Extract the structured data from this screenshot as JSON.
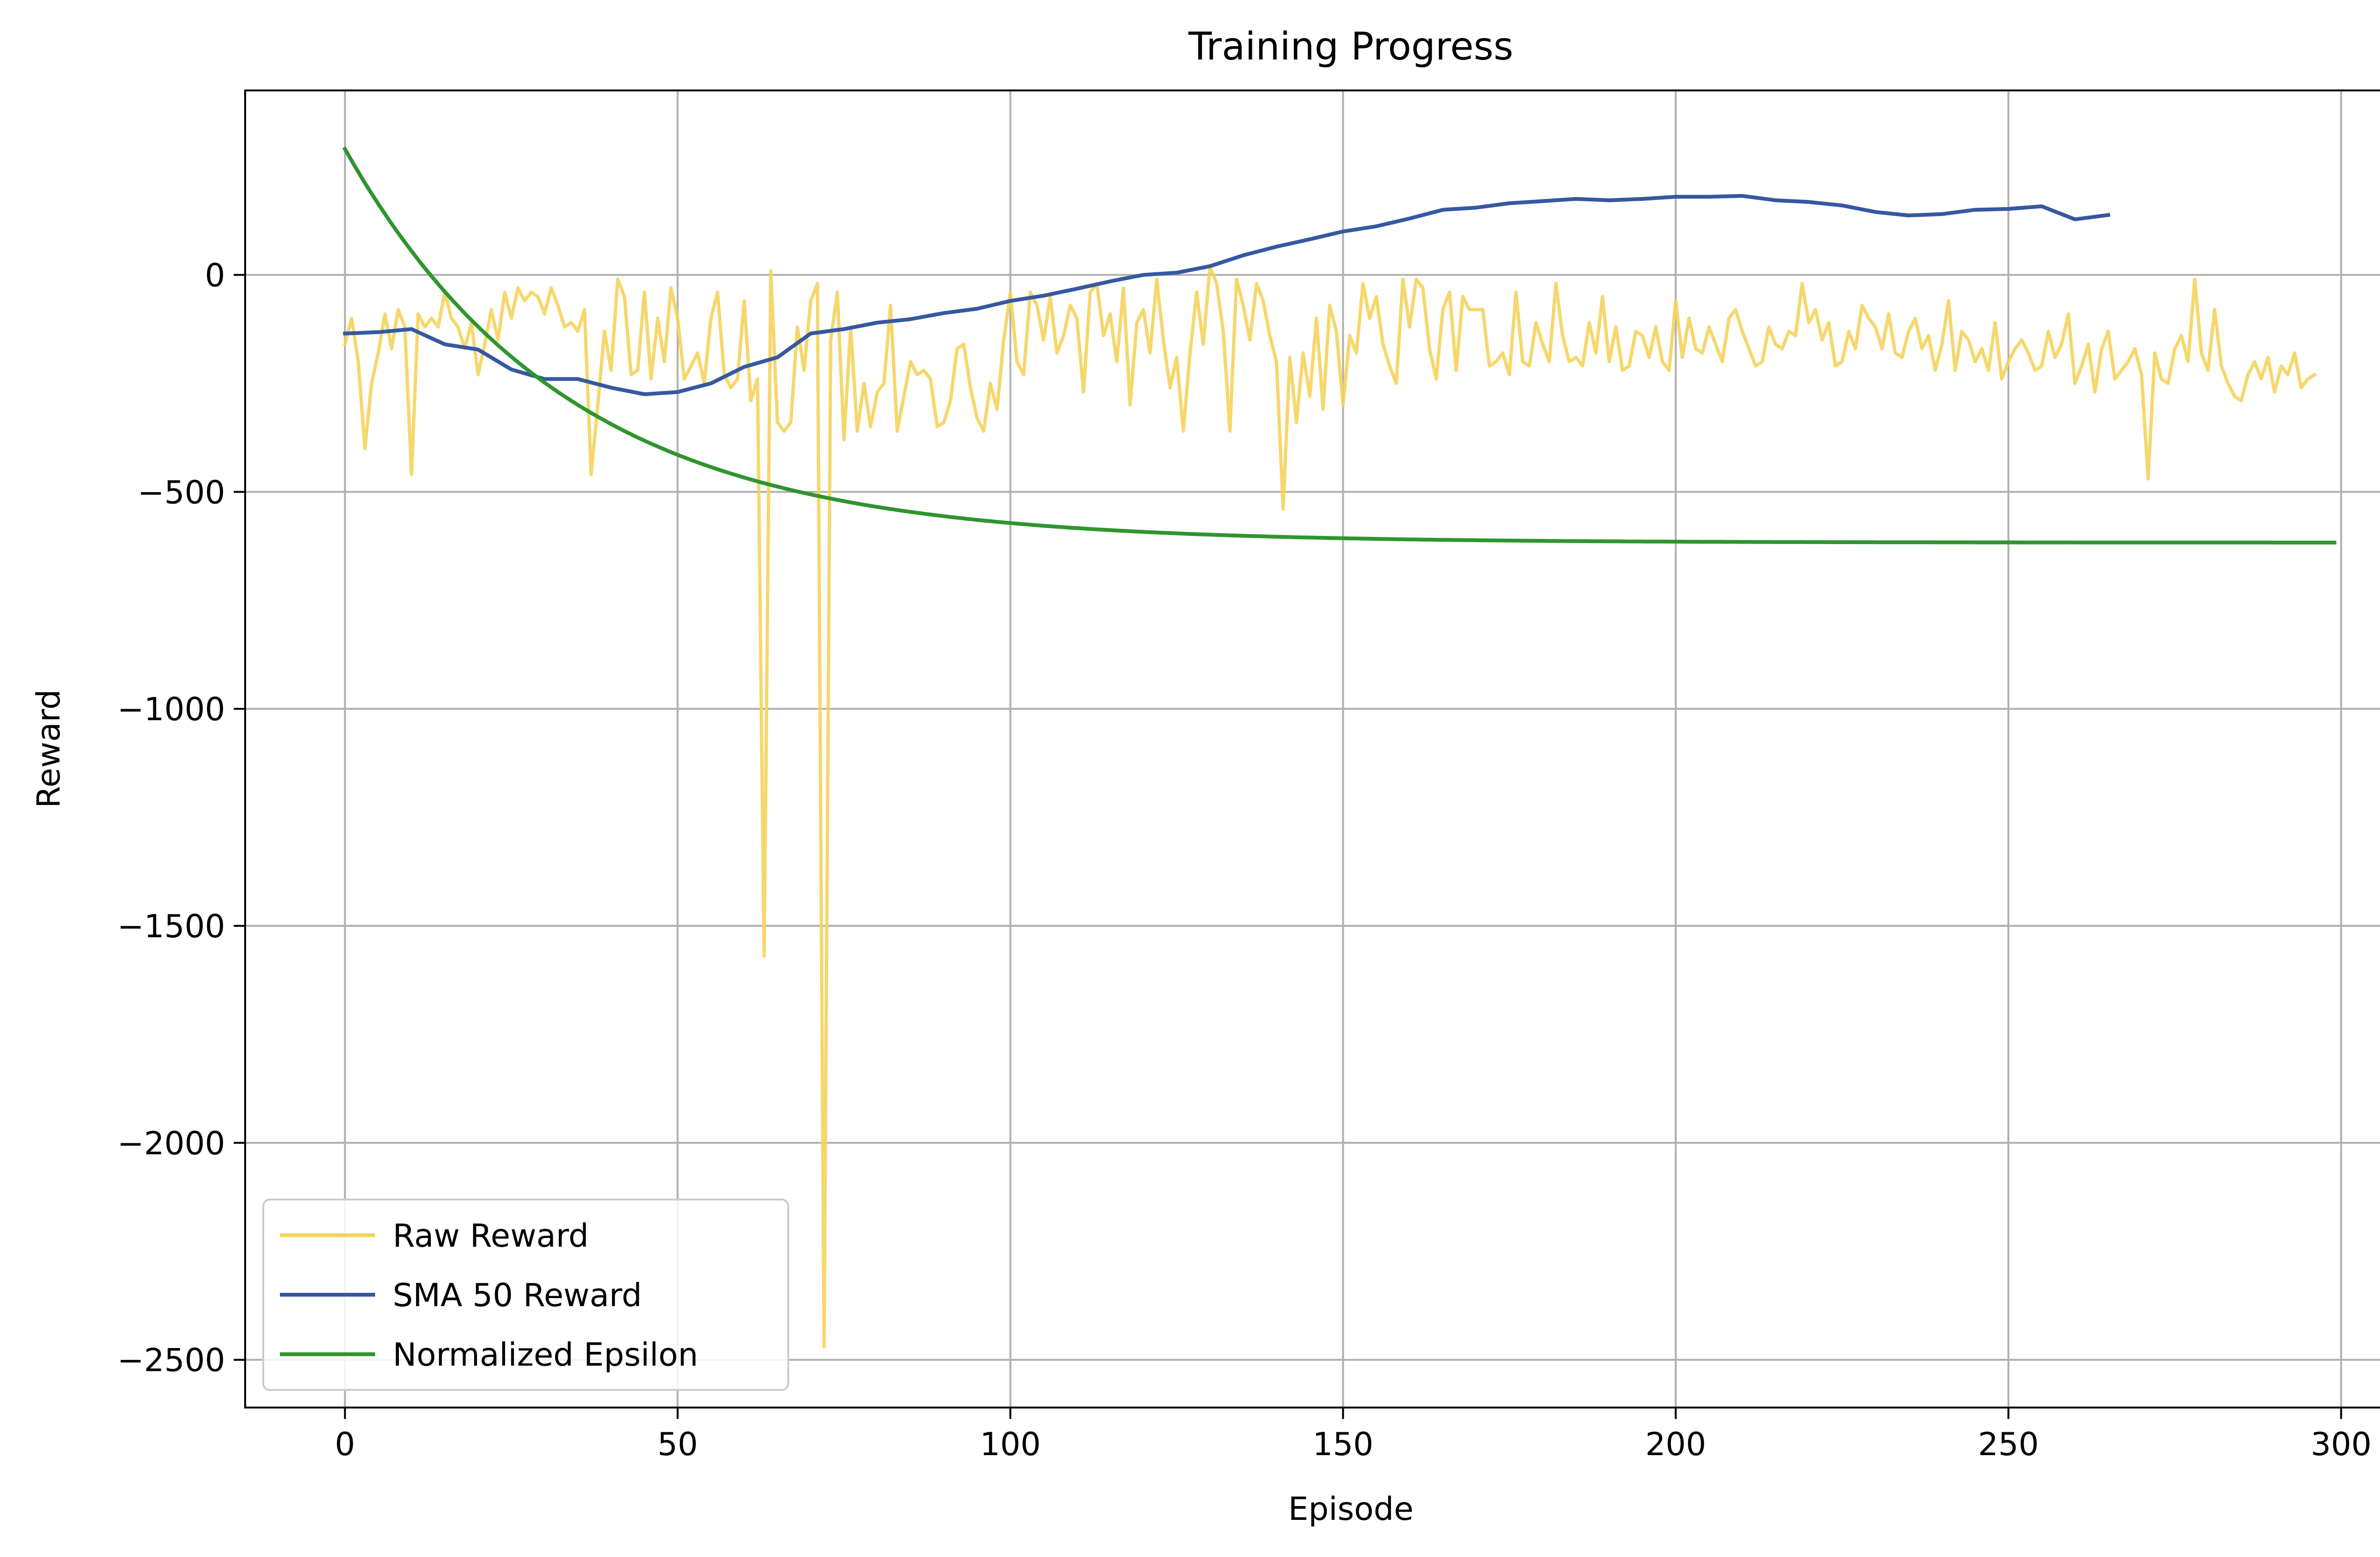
{
  "chart_data": {
    "type": "line",
    "title": "Training Progress",
    "xlabel": "Episode",
    "ylabel": "Reward",
    "xlim": [
      -15,
      315
    ],
    "ylim": [
      -2610,
      425
    ],
    "xticks": [
      0,
      50,
      100,
      150,
      200,
      250,
      300
    ],
    "yticks": [
      0,
      -500,
      -1000,
      -1500,
      -2000,
      -2500
    ],
    "xtick_labels": [
      "0",
      "50",
      "100",
      "150",
      "200",
      "250",
      "300"
    ],
    "ytick_labels": [
      "0",
      "−500",
      "−1000",
      "−1500",
      "−2000",
      "−2500"
    ],
    "grid": true,
    "legend_position": "lower-left",
    "series": [
      {
        "name": "Raw Reward",
        "color": "#f5d35c",
        "x_start": 0,
        "x_step": 1,
        "values": [
          -160,
          -100,
          -200,
          -400,
          -250,
          -180,
          -90,
          -170,
          -80,
          -120,
          -460,
          -90,
          -120,
          -100,
          -120,
          -40,
          -100,
          -120,
          -170,
          -110,
          -230,
          -160,
          -80,
          -150,
          -40,
          -100,
          -30,
          -60,
          -40,
          -50,
          -90,
          -30,
          -70,
          -120,
          -110,
          -130,
          -80,
          -460,
          -300,
          -130,
          -220,
          -10,
          -50,
          -230,
          -220,
          -40,
          -240,
          -100,
          -200,
          -30,
          -100,
          -240,
          -210,
          -180,
          -250,
          -100,
          -40,
          -230,
          -260,
          -240,
          -60,
          -290,
          -240,
          -1570,
          10,
          -340,
          -360,
          -340,
          -120,
          -220,
          -60,
          -20,
          -2470,
          -150,
          -40,
          -380,
          -120,
          -360,
          -250,
          -350,
          -270,
          -250,
          -70,
          -360,
          -280,
          -200,
          -230,
          -220,
          -240,
          -350,
          -340,
          -290,
          -170,
          -160,
          -260,
          -330,
          -360,
          -250,
          -310,
          -150,
          -40,
          -200,
          -230,
          -40,
          -70,
          -150,
          -50,
          -180,
          -140,
          -70,
          -100,
          -270,
          -40,
          -20,
          -140,
          -90,
          -200,
          -30,
          -300,
          -110,
          -80,
          -180,
          -10,
          -150,
          -260,
          -190,
          -360,
          -180,
          -40,
          -160,
          20,
          -20,
          -130,
          -360,
          -10,
          -70,
          -150,
          -20,
          -60,
          -140,
          -200,
          -540,
          -190,
          -340,
          -180,
          -280,
          -100,
          -310,
          -70,
          -130,
          -300,
          -140,
          -180,
          -20,
          -100,
          -50,
          -160,
          -210,
          -250,
          -10,
          -120,
          -10,
          -30,
          -170,
          -240,
          -80,
          -40,
          -220,
          -50,
          -80,
          -80,
          -80,
          -210,
          -200,
          -180,
          -230,
          -40,
          -200,
          -210,
          -110,
          -160,
          -200,
          -20,
          -140,
          -200,
          -190,
          -210,
          -110,
          -180,
          -50,
          -200,
          -120,
          -220,
          -210,
          -130,
          -140,
          -190,
          -120,
          -200,
          -220,
          -60,
          -190,
          -100,
          -170,
          -180,
          -120,
          -160,
          -200,
          -100,
          -80,
          -130,
          -170,
          -210,
          -200,
          -120,
          -160,
          -170,
          -130,
          -140,
          -20,
          -110,
          -80,
          -150,
          -110,
          -210,
          -200,
          -130,
          -170,
          -70,
          -100,
          -120,
          -170,
          -90,
          -180,
          -190,
          -130,
          -100,
          -170,
          -140,
          -220,
          -160,
          -60,
          -220,
          -130,
          -150,
          -200,
          -170,
          -220,
          -110,
          -240,
          -200,
          -170,
          -150,
          -180,
          -220,
          -210,
          -130,
          -190,
          -160,
          -90,
          -250,
          -210,
          -160,
          -270,
          -170,
          -130,
          -240,
          -220,
          -200,
          -170,
          -230,
          -470,
          -180,
          -240,
          -250,
          -170,
          -140,
          -200,
          -10,
          -180,
          -220,
          -80,
          -210,
          -250,
          -280,
          -290,
          -230,
          -200,
          -240,
          -190,
          -270,
          -210,
          -230,
          -180,
          -260,
          -240,
          -230
        ]
      },
      {
        "name": "SMA 50 Reward",
        "color": "#3558a0",
        "x_start": 0,
        "x_step": 5,
        "values": [
          -135,
          -132,
          -125,
          -160,
          -172,
          -218,
          -240,
          -240,
          -260,
          -275,
          -270,
          -250,
          -212,
          -190,
          -135,
          -125,
          -110,
          -102,
          -88,
          -78,
          -60,
          -48,
          -32,
          -15,
          0,
          5,
          20,
          45,
          65,
          82,
          100,
          112,
          130,
          150,
          155,
          165,
          170,
          175,
          172,
          175,
          180,
          180,
          182,
          172,
          168,
          160,
          145,
          137,
          140,
          150,
          152,
          158,
          128,
          138
        ]
      },
      {
        "name": "Normalized Epsilon",
        "color": "#2f952f",
        "x_start": 0,
        "x_end": 299,
        "y_start": 290,
        "y_end": -617,
        "decay": 0.03
      }
    ]
  }
}
